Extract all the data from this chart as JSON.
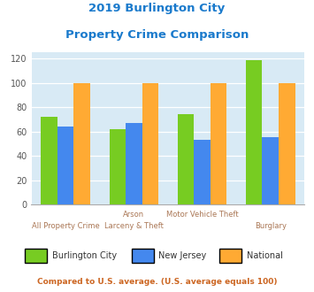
{
  "title_line1": "2019 Burlington City",
  "title_line2": "Property Crime Comparison",
  "title_color": "#1a7acc",
  "cat_labels_row1": [
    "",
    "Arson",
    "Motor Vehicle Theft",
    ""
  ],
  "cat_labels_row2": [
    "All Property Crime",
    "Larceny & Theft",
    "",
    "Burglary"
  ],
  "burlington_city": [
    72,
    62,
    74,
    119
  ],
  "new_jersey": [
    64,
    67,
    53,
    55
  ],
  "national": [
    100,
    100,
    100,
    100
  ],
  "colors": {
    "burlington_city": "#77cc22",
    "new_jersey": "#4488ee",
    "national": "#ffaa33"
  },
  "ylim": [
    0,
    125
  ],
  "yticks": [
    0,
    20,
    40,
    60,
    80,
    100,
    120
  ],
  "plot_bg": "#d8eaf5",
  "legend_labels": [
    "Burlington City",
    "New Jersey",
    "National"
  ],
  "footnote1": "Compared to U.S. average. (U.S. average equals 100)",
  "footnote1_color": "#cc6622",
  "footnote2_color": "#5588bb",
  "label_color": "#aa7755"
}
